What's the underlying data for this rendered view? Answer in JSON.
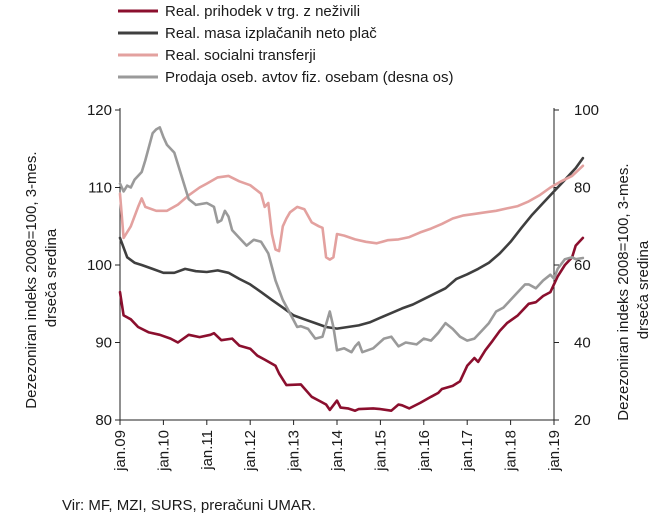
{
  "chart_data": {
    "type": "line",
    "x_labels": [
      "jan.09",
      "jan.10",
      "jan.11",
      "jan.12",
      "jan.13",
      "jan.14",
      "jan.15",
      "jan.16",
      "jan.17",
      "jan.18",
      "jan.19"
    ],
    "y_left": {
      "label_lines": [
        "Dezezoniran indeks 2008=100, 3-mes.",
        "drseča sredina"
      ],
      "ticks": [
        80,
        90,
        100,
        110,
        120
      ],
      "range": [
        80,
        120
      ]
    },
    "y_right": {
      "label_lines": [
        "Dezezoniran indeks 2008=100, 3-mes.",
        "drseča sredina"
      ],
      "ticks": [
        20,
        40,
        60,
        80,
        100
      ],
      "range": [
        20,
        100
      ]
    },
    "grid": false,
    "legend_position": "top",
    "source": "Vir: MF, MZI, SURS, preračuni UMAR.",
    "series": [
      {
        "name": "Real. prihodek v trg. z neživili",
        "axis": "left",
        "color": "#8b0f2e",
        "width": 2.6,
        "points": [
          [
            0,
            96.5
          ],
          [
            1,
            93.5
          ],
          [
            3,
            93
          ],
          [
            5,
            92
          ],
          [
            8,
            91.3
          ],
          [
            11,
            91
          ],
          [
            14,
            90.5
          ],
          [
            16,
            90
          ],
          [
            19,
            91
          ],
          [
            22,
            90.7
          ],
          [
            25,
            91
          ],
          [
            26,
            91.2
          ],
          [
            28,
            90.3
          ],
          [
            31,
            90.5
          ],
          [
            33,
            89.6
          ],
          [
            36,
            89.2
          ],
          [
            38,
            88.3
          ],
          [
            40,
            87.8
          ],
          [
            43,
            87
          ],
          [
            44,
            86
          ],
          [
            46,
            84.5
          ],
          [
            50,
            84.6
          ],
          [
            53,
            83
          ],
          [
            55,
            82.5
          ],
          [
            57,
            82
          ],
          [
            58,
            81.3
          ],
          [
            60,
            82.5
          ],
          [
            61,
            81.6
          ],
          [
            63,
            81.5
          ],
          [
            65,
            81.2
          ],
          [
            66,
            81.4
          ],
          [
            70,
            81.5
          ],
          [
            72,
            81.4
          ],
          [
            75,
            81.2
          ],
          [
            77,
            82
          ],
          [
            78,
            81.9
          ],
          [
            80,
            81.5
          ],
          [
            83,
            82.2
          ],
          [
            86,
            83
          ],
          [
            88,
            83.5
          ],
          [
            89,
            84
          ],
          [
            92,
            84.4
          ],
          [
            94,
            85
          ],
          [
            96,
            87
          ],
          [
            98,
            88
          ],
          [
            99,
            87.5
          ],
          [
            101,
            89
          ],
          [
            103,
            90.2
          ],
          [
            105,
            91.5
          ],
          [
            107,
            92.5
          ],
          [
            110,
            93.5
          ],
          [
            113,
            95
          ],
          [
            115,
            95.2
          ],
          [
            117,
            96
          ],
          [
            119,
            96.5
          ],
          [
            121,
            98.5
          ],
          [
            123,
            100
          ],
          [
            125,
            101
          ],
          [
            126,
            102.5
          ],
          [
            128,
            103.5
          ]
        ]
      },
      {
        "name": "Real. masa izplačanih neto plač",
        "axis": "left",
        "color": "#3f3f3f",
        "width": 2.6,
        "points": [
          [
            0,
            103.5
          ],
          [
            2,
            101
          ],
          [
            4,
            100.3
          ],
          [
            6,
            100
          ],
          [
            9,
            99.5
          ],
          [
            12,
            99
          ],
          [
            15,
            99
          ],
          [
            18,
            99.5
          ],
          [
            21,
            99.2
          ],
          [
            24,
            99.1
          ],
          [
            27,
            99.3
          ],
          [
            30,
            99
          ],
          [
            33,
            98.2
          ],
          [
            36,
            97.5
          ],
          [
            39,
            96.5
          ],
          [
            42,
            95.5
          ],
          [
            45,
            94.5
          ],
          [
            48,
            93.5
          ],
          [
            51,
            93
          ],
          [
            54,
            92.5
          ],
          [
            57,
            92
          ],
          [
            60,
            91.8
          ],
          [
            63,
            92
          ],
          [
            66,
            92.2
          ],
          [
            69,
            92.6
          ],
          [
            72,
            93.2
          ],
          [
            75,
            93.8
          ],
          [
            78,
            94.4
          ],
          [
            81,
            94.9
          ],
          [
            84,
            95.6
          ],
          [
            87,
            96.3
          ],
          [
            90,
            97
          ],
          [
            93,
            98.2
          ],
          [
            96,
            98.8
          ],
          [
            99,
            99.5
          ],
          [
            102,
            100.3
          ],
          [
            105,
            101.5
          ],
          [
            108,
            103
          ],
          [
            111,
            104.8
          ],
          [
            114,
            106.5
          ],
          [
            117,
            108
          ],
          [
            120,
            109.5
          ],
          [
            123,
            111
          ],
          [
            126,
            112.5
          ],
          [
            128,
            113.8
          ]
        ]
      },
      {
        "name": "Real. socialni transferji",
        "axis": "left",
        "color": "#e3a19f",
        "width": 2.6,
        "points": [
          [
            0,
            109.2
          ],
          [
            1,
            103.5
          ],
          [
            3,
            105
          ],
          [
            5,
            107.5
          ],
          [
            6,
            108.6
          ],
          [
            7,
            107.5
          ],
          [
            10,
            107
          ],
          [
            13,
            107
          ],
          [
            16,
            107.8
          ],
          [
            19,
            109
          ],
          [
            22,
            110
          ],
          [
            24,
            110.5
          ],
          [
            27,
            111.3
          ],
          [
            30,
            111.5
          ],
          [
            33,
            110.8
          ],
          [
            36,
            110.3
          ],
          [
            39,
            109.2
          ],
          [
            40,
            107.5
          ],
          [
            41,
            108
          ],
          [
            42,
            104
          ],
          [
            43,
            102
          ],
          [
            44,
            101.8
          ],
          [
            45,
            105
          ],
          [
            46,
            106
          ],
          [
            47,
            106.8
          ],
          [
            49,
            107.5
          ],
          [
            51,
            107.2
          ],
          [
            53,
            105.5
          ],
          [
            55,
            105
          ],
          [
            56,
            104.8
          ],
          [
            57,
            101
          ],
          [
            58,
            100.7
          ],
          [
            59,
            101
          ],
          [
            60,
            104
          ],
          [
            62,
            103.8
          ],
          [
            65,
            103.3
          ],
          [
            68,
            103
          ],
          [
            71,
            102.8
          ],
          [
            74,
            103.2
          ],
          [
            77,
            103.3
          ],
          [
            80,
            103.6
          ],
          [
            83,
            104.2
          ],
          [
            86,
            104.7
          ],
          [
            89,
            105.3
          ],
          [
            92,
            106
          ],
          [
            95,
            106.4
          ],
          [
            98,
            106.6
          ],
          [
            101,
            106.8
          ],
          [
            104,
            107
          ],
          [
            107,
            107.3
          ],
          [
            110,
            107.6
          ],
          [
            113,
            108.2
          ],
          [
            116,
            109
          ],
          [
            119,
            110
          ],
          [
            122,
            110.8
          ],
          [
            125,
            111.5
          ],
          [
            128,
            112.8
          ]
        ]
      },
      {
        "name": "Prodaja oseb. avtov fiz. osebam (desna os)",
        "axis": "right",
        "color": "#9a9a9a",
        "width": 2.6,
        "points": [
          [
            0,
            81
          ],
          [
            1,
            79
          ],
          [
            2,
            80.5
          ],
          [
            3,
            80
          ],
          [
            4,
            82
          ],
          [
            6,
            84
          ],
          [
            7,
            87
          ],
          [
            9,
            94
          ],
          [
            10,
            95
          ],
          [
            11,
            95.5
          ],
          [
            12,
            93
          ],
          [
            13,
            91
          ],
          [
            15,
            89
          ],
          [
            16,
            86
          ],
          [
            17,
            83
          ],
          [
            19,
            77
          ],
          [
            21,
            75.5
          ],
          [
            24,
            76
          ],
          [
            25,
            75.5
          ],
          [
            26,
            75
          ],
          [
            27,
            71
          ],
          [
            28,
            71.5
          ],
          [
            29,
            74
          ],
          [
            30,
            72.5
          ],
          [
            31,
            69
          ],
          [
            33,
            67
          ],
          [
            35,
            65
          ],
          [
            37,
            66.5
          ],
          [
            39,
            66
          ],
          [
            41,
            63
          ],
          [
            43,
            56
          ],
          [
            45,
            51
          ],
          [
            47,
            47.5
          ],
          [
            49,
            44
          ],
          [
            50,
            44.2
          ],
          [
            52,
            43.5
          ],
          [
            54,
            41
          ],
          [
            56,
            41.5
          ],
          [
            58,
            48
          ],
          [
            59,
            44
          ],
          [
            60,
            38
          ],
          [
            62,
            38.5
          ],
          [
            63,
            38
          ],
          [
            64,
            37.5
          ],
          [
            65,
            39
          ],
          [
            66,
            40
          ],
          [
            67,
            37.5
          ],
          [
            70,
            38.5
          ],
          [
            73,
            41
          ],
          [
            75,
            41.5
          ],
          [
            77,
            39
          ],
          [
            79,
            40
          ],
          [
            82,
            39.5
          ],
          [
            84,
            41
          ],
          [
            86,
            40.5
          ],
          [
            88,
            42.5
          ],
          [
            90,
            45
          ],
          [
            92,
            43.5
          ],
          [
            94,
            41.5
          ],
          [
            96,
            40.5
          ],
          [
            98,
            41
          ],
          [
            100,
            43
          ],
          [
            102,
            45
          ],
          [
            104,
            48
          ],
          [
            106,
            49
          ],
          [
            108,
            51
          ],
          [
            110,
            53
          ],
          [
            112,
            55
          ],
          [
            113,
            55
          ],
          [
            115,
            54
          ],
          [
            117,
            56
          ],
          [
            119,
            57.5
          ],
          [
            120,
            56.5
          ],
          [
            121,
            59
          ],
          [
            123,
            61.5
          ],
          [
            125,
            62
          ],
          [
            126,
            61.5
          ],
          [
            128,
            61.8
          ]
        ]
      }
    ]
  }
}
